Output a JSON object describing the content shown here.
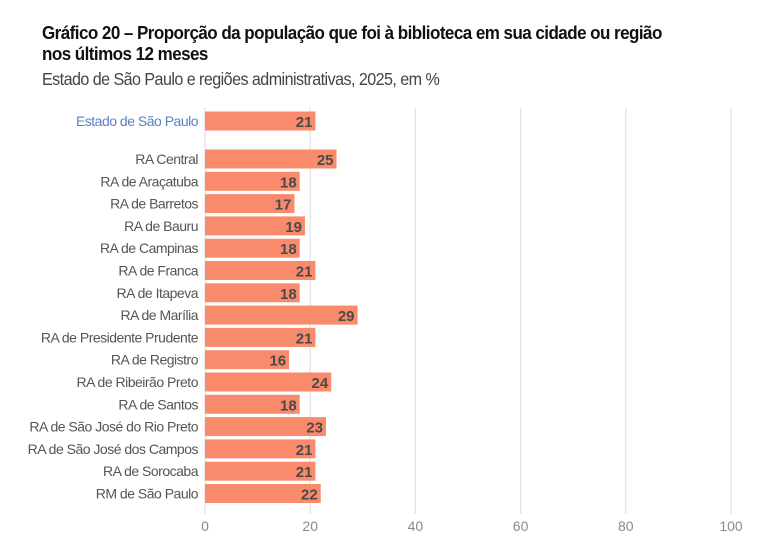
{
  "header": {
    "title": "Gráfico 20 – Proporção da população que foi à biblioteca em sua cidade ou região nos últimos 12 meses",
    "subtitle": "Estado de São Paulo e regiões administrativas, 2025, em %"
  },
  "colors": {
    "bar": "#f98b6c",
    "highlight_label": "#5b7fc7",
    "gridline": "#e3e3e3"
  },
  "chart_data": {
    "type": "bar",
    "orientation": "horizontal",
    "title": "Gráfico 20 – Proporção da população que foi à biblioteca em sua cidade ou região nos últimos 12 meses",
    "subtitle": "Estado de São Paulo e regiões administrativas, 2025, em %",
    "xlabel": "",
    "ylabel": "",
    "xlim": [
      0,
      100
    ],
    "xticks": [
      0,
      20,
      40,
      60,
      80,
      100
    ],
    "grid": true,
    "categories": [
      "Estado de São Paulo",
      "RA Central",
      "RA de Araçatuba",
      "RA de Barretos",
      "RA de Bauru",
      "RA de Campinas",
      "RA de Franca",
      "RA de Itapeva",
      "RA de Marília",
      "RA de Presidente Prudente",
      "RA de Registro",
      "RA de Ribeirão Preto",
      "RA de Santos",
      "RA de São José do Rio Preto",
      "RA de São José dos Campos",
      "RA de Sorocaba",
      "RM de São Paulo"
    ],
    "values": [
      21,
      25,
      18,
      17,
      19,
      18,
      21,
      18,
      29,
      21,
      16,
      24,
      18,
      23,
      21,
      21,
      22
    ],
    "highlighted": [
      "Estado de São Paulo"
    ]
  }
}
